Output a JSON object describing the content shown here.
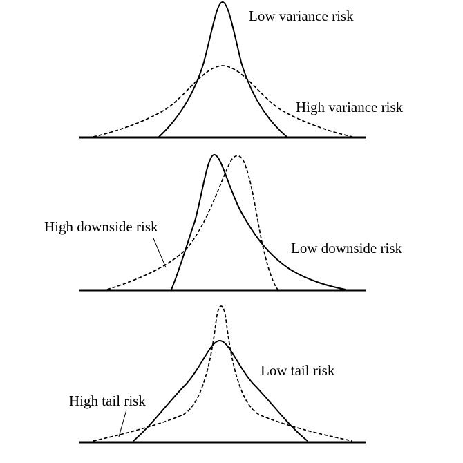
{
  "panels": [
    {
      "id": "variance",
      "labels": {
        "solid": "Low variance risk",
        "dashed": "High variance risk"
      }
    },
    {
      "id": "downside",
      "labels": {
        "dashed": "High downside risk",
        "solid": "Low downside risk"
      }
    },
    {
      "id": "tail",
      "labels": {
        "solid": "Low tail risk",
        "dashed": "High tail risk"
      }
    }
  ],
  "colors": {
    "line": "#000000",
    "background": "#ffffff"
  }
}
